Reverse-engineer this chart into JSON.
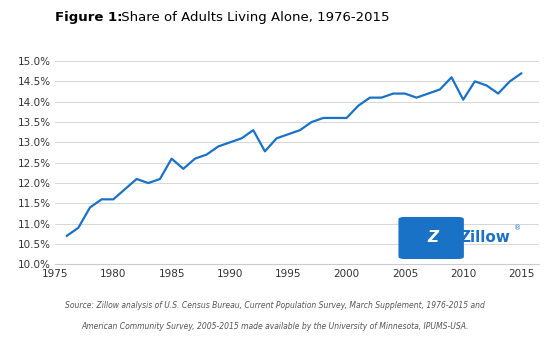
{
  "title_bold": "Figure 1:",
  "title_regular": " Share of Adults Living Alone, 1976-2015",
  "line_color": "#1a72c7",
  "line_width": 1.6,
  "background_color": "#ffffff",
  "ylim": [
    0.1,
    0.15
  ],
  "xlim": [
    1975,
    2016.5
  ],
  "ytick_labels": [
    "10.0%",
    "10.5%",
    "11.0%",
    "11.5%",
    "12.0%",
    "12.5%",
    "13.0%",
    "13.5%",
    "14.0%",
    "14.5%",
    "15.0%"
  ],
  "ytick_values": [
    0.1,
    0.105,
    0.11,
    0.115,
    0.12,
    0.125,
    0.13,
    0.135,
    0.14,
    0.145,
    0.15
  ],
  "xtick_values": [
    1975,
    1980,
    1985,
    1990,
    1995,
    2000,
    2005,
    2010,
    2015
  ],
  "source_line1": "Source: Zillow analysis of U.S. Census Bureau, Current Population Survey, March Supplement, 1976-2015 and",
  "source_line2": "American Community Survey, 2005-2015 made available by the University of Minnesota, IPUMS-USA.",
  "zillow_box_color": "#1a72c7",
  "zillow_text_color": "#1a72c7",
  "years": [
    1976,
    1977,
    1978,
    1979,
    1980,
    1981,
    1982,
    1983,
    1984,
    1985,
    1986,
    1987,
    1988,
    1989,
    1990,
    1991,
    1992,
    1993,
    1994,
    1995,
    1996,
    1997,
    1998,
    1999,
    2000,
    2001,
    2002,
    2003,
    2004,
    2005,
    2006,
    2007,
    2008,
    2009,
    2010,
    2011,
    2012,
    2013,
    2014,
    2015
  ],
  "values": [
    0.107,
    0.109,
    0.114,
    0.116,
    0.116,
    0.1185,
    0.121,
    0.12,
    0.121,
    0.126,
    0.1235,
    0.126,
    0.127,
    0.129,
    0.13,
    0.131,
    0.133,
    0.1278,
    0.131,
    0.132,
    0.133,
    0.135,
    0.136,
    0.136,
    0.136,
    0.139,
    0.141,
    0.141,
    0.142,
    0.142,
    0.141,
    0.142,
    0.143,
    0.146,
    0.1405,
    0.145,
    0.144,
    0.142,
    0.145,
    0.147
  ]
}
